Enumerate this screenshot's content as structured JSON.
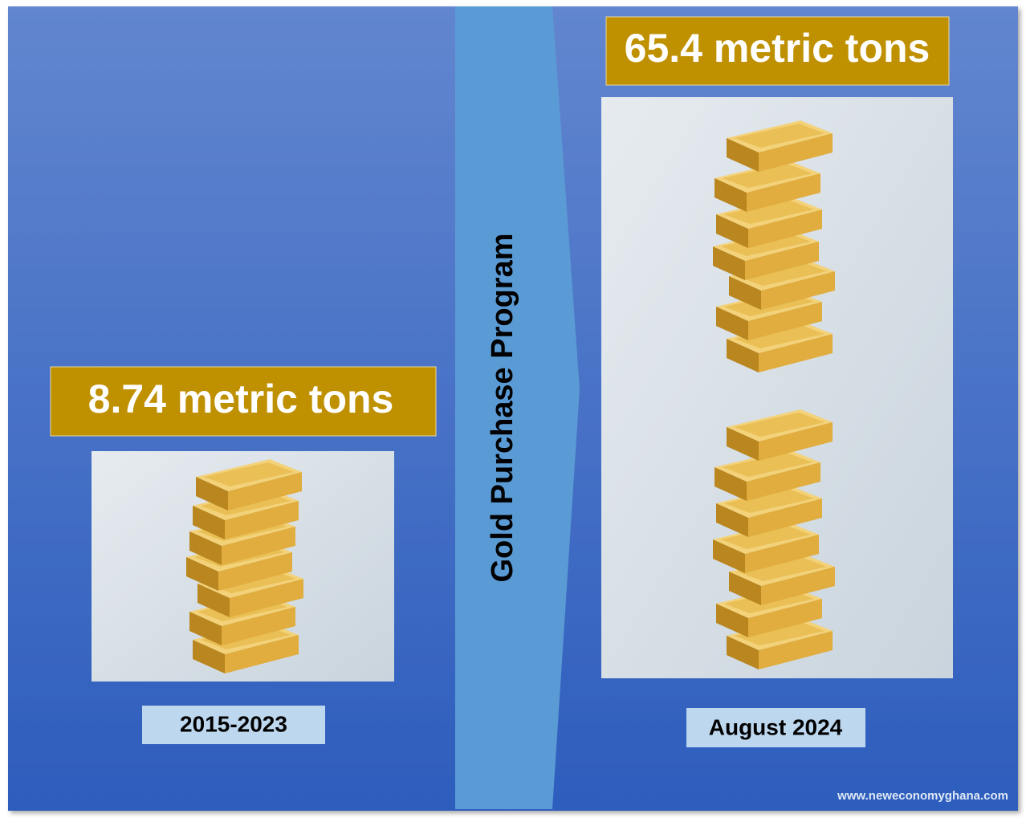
{
  "left": {
    "amount": "8.74 metric tons",
    "period": "2015-2023"
  },
  "center": {
    "title": "Gold Purchase Program"
  },
  "right": {
    "amount": "65.4 metric tons",
    "period": "August 2024"
  },
  "footer": {
    "source": "www.neweconomyghana.com"
  }
}
